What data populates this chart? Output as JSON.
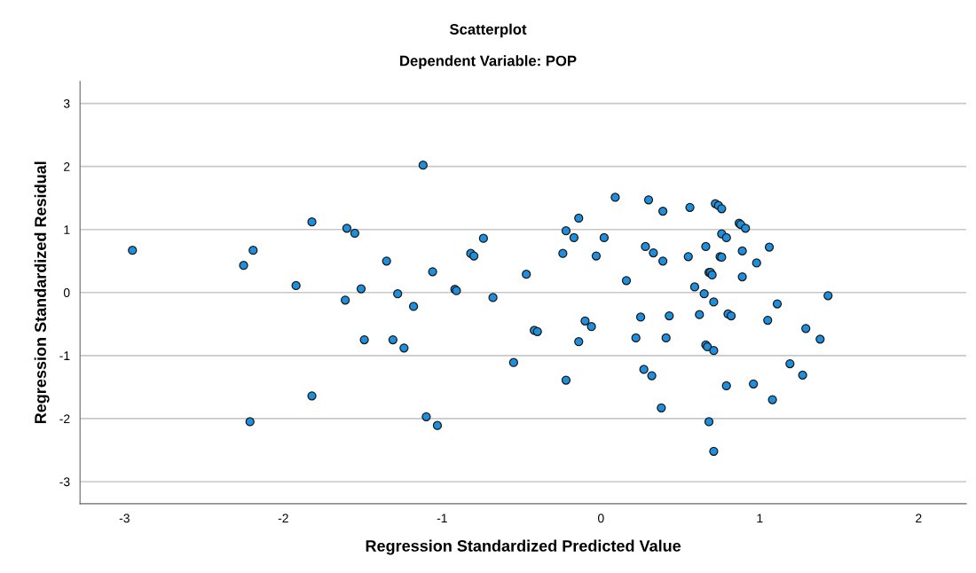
{
  "chart_data": {
    "type": "scatter",
    "title": "Scatterplot",
    "subtitle": "Dependent Variable: POP",
    "xlabel": "Regression Standardized Predicted Value",
    "ylabel": "Regression Standardized Residual",
    "xlim": [
      -3.28,
      2.3
    ],
    "ylim": [
      -3.35,
      3.35
    ],
    "xticks": [
      -3,
      -2,
      -1,
      0,
      1,
      2
    ],
    "yticks": [
      -3,
      -2,
      -1,
      0,
      1,
      2,
      3
    ],
    "grid": "y",
    "marker": "circle",
    "series": [
      {
        "color": "#1e8fde",
        "x": [
          -2.95,
          -2.25,
          -2.19,
          -2.21,
          -1.92,
          -1.82,
          -1.82,
          -1.6,
          -1.55,
          -1.61,
          -1.51,
          -1.49,
          -1.35,
          -1.31,
          -1.28,
          -1.24,
          -1.18,
          -1.12,
          -1.1,
          -1.06,
          -1.03,
          -0.92,
          -0.91,
          -0.82,
          -0.8,
          -0.74,
          -0.68,
          -0.55,
          -0.47,
          -0.42,
          -0.4,
          -0.24,
          -0.22,
          -0.22,
          -0.17,
          -0.14,
          -0.14,
          -0.1,
          -0.06,
          -0.03,
          0.02,
          0.09,
          0.16,
          0.22,
          0.25,
          0.27,
          0.28,
          0.3,
          0.32,
          0.33,
          0.38,
          0.39,
          0.39,
          0.41,
          0.43,
          0.55,
          0.56,
          0.59,
          0.62,
          0.65,
          0.66,
          0.66,
          0.67,
          0.68,
          0.69,
          0.68,
          0.7,
          0.71,
          0.71,
          0.71,
          0.72,
          0.74,
          0.75,
          0.76,
          0.76,
          0.76,
          0.79,
          0.8,
          0.79,
          0.82,
          0.87,
          0.88,
          0.89,
          0.89,
          0.91,
          0.96,
          0.98,
          1.05,
          1.06,
          1.08,
          1.11,
          1.19,
          1.27,
          1.29,
          1.38,
          1.43
        ],
        "values": [
          0.67,
          0.43,
          0.67,
          -2.05,
          0.11,
          1.12,
          -1.64,
          1.02,
          0.94,
          -0.12,
          0.06,
          -0.75,
          0.5,
          -0.75,
          -0.02,
          -0.88,
          -0.22,
          2.02,
          -1.97,
          0.33,
          -2.11,
          0.05,
          0.03,
          0.62,
          0.58,
          0.86,
          -0.08,
          -1.11,
          0.29,
          -0.6,
          -0.62,
          0.62,
          0.98,
          -1.39,
          0.87,
          1.18,
          -0.78,
          -0.45,
          -0.54,
          0.58,
          0.87,
          1.51,
          0.19,
          -0.72,
          -0.39,
          -1.22,
          0.73,
          1.47,
          -1.32,
          0.63,
          -1.83,
          1.29,
          0.5,
          -0.72,
          -0.37,
          0.57,
          1.35,
          0.09,
          -0.35,
          -0.02,
          0.73,
          -0.83,
          -0.86,
          0.32,
          0.32,
          -2.05,
          0.28,
          -0.15,
          -0.92,
          -2.52,
          1.41,
          1.38,
          0.57,
          0.56,
          1.33,
          0.93,
          0.87,
          -0.34,
          -1.48,
          -0.37,
          1.1,
          1.08,
          0.66,
          0.25,
          1.02,
          -1.45,
          0.47,
          -0.44,
          0.72,
          -1.7,
          -0.18,
          -1.13,
          -1.31,
          -0.57,
          -0.74,
          -0.05
        ]
      }
    ]
  }
}
